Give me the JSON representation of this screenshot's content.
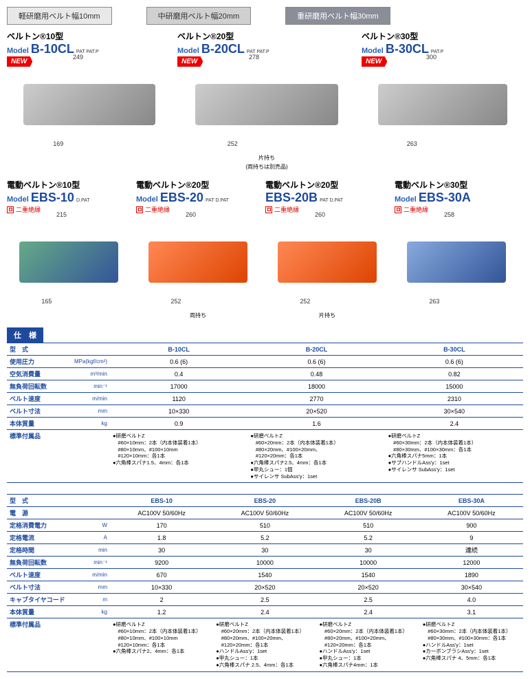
{
  "colors": {
    "blue": "#1e4a9e",
    "red": "#e00",
    "tab_heavy": "#8a8e99"
  },
  "tabs": {
    "light": "軽研磨用ベルト幅10mm",
    "mid": "中研磨用ベルト幅20mm",
    "heavy": "重研磨用ベルト幅30mm"
  },
  "new_label": "NEW",
  "row1": [
    {
      "jp": "ベルトン®10型",
      "model": "Model",
      "code": "B-10CL",
      "pat": "PAT\nPAT.P",
      "w": "249",
      "h": "169",
      "new": true
    },
    {
      "jp": "ベルトン®20型",
      "model": "Model",
      "code": "B-20CL",
      "pat": "PAT\nPAT.P",
      "w": "278",
      "h": "252",
      "new": true,
      "sub": "片持ち",
      "sub2": "(両持ちは別売品)"
    },
    {
      "jp": "ベルトン®30型",
      "model": "Model",
      "code": "B-30CL",
      "pat": "PAT.P",
      "w": "300",
      "h": "263",
      "new": true
    }
  ],
  "row2": [
    {
      "jp": "電動ベルトン®10型",
      "model": "Model",
      "code": "EBS-10",
      "pat": "D.PAT",
      "insul": "二重絶縁",
      "w": "215",
      "h": "165"
    },
    {
      "jp": "電動ベルトン®20型",
      "model": "Model",
      "code": "EBS-20",
      "pat": "PAT\nD.PAT",
      "insul": "二重絶縁",
      "w": "260",
      "h": "252",
      "sub": "両持ち"
    },
    {
      "jp": "電動ベルトン®20型",
      "model": "",
      "code": "EBS-20B",
      "pat": "PAT\nD.PAT",
      "insul": "二重絶縁",
      "w": "260",
      "h": "252",
      "sub": "片持ち"
    },
    {
      "jp": "電動ベルトン®30型",
      "model": "Model",
      "code": "EBS-30A",
      "pat": "",
      "insul": "二重絶縁",
      "w": "258",
      "h": "263"
    }
  ],
  "spec_title": "仕　様",
  "table1": {
    "headers": [
      "型　式",
      "B-10CL",
      "B-20CL",
      "B-30CL"
    ],
    "rows": [
      {
        "label": "使用圧力",
        "unit": "MPa(kgf/cm²)",
        "v": [
          "0.6 (6)",
          "0.6 (6)",
          "0.6 (6)"
        ]
      },
      {
        "label": "空気消費量",
        "unit": "m³/min",
        "v": [
          "0.4",
          "0.48",
          "0.82"
        ]
      },
      {
        "label": "無負荷回転数",
        "unit": "min⁻¹",
        "v": [
          "17000",
          "18000",
          "15000"
        ]
      },
      {
        "label": "ベルト速度",
        "unit": "m/min",
        "v": [
          "1120",
          "2770",
          "2310"
        ]
      },
      {
        "label": "ベルト寸法",
        "unit": "mm",
        "v": [
          "10×330",
          "20×520",
          "30×540"
        ]
      },
      {
        "label": "本体質量",
        "unit": "kg",
        "v": [
          "0.9",
          "1.6",
          "2.4"
        ]
      }
    ],
    "acc_label": "標準付属品",
    "acc": [
      "●研磨ベルトZ\n　#60×10mm：2本（内本体装着1本）\n　#80×10mm、#100×10mm\n　#120×10mm：各1本\n●六角棒スパナ1.5、4mm：各1本",
      "●研磨ベルトZ\n　#60×20mm：2本（内本体装着1本）\n　#80×20mm、#100×20mm、\n　#120×20mm：各1本\n●六角棒スパナ2.5、4mm：各1本\n●甲丸シュー：1個\n●サイレンサ SubAss'y：1set",
      "●研磨ベルトZ\n　#60×30mm：2本（内本体装着1本）\n　#80×30mm、#100×30mm：各1本\n●六角棒スパナ5mm：1本\n●サブハンドルAss'y：1set\n●サイレンサ SubAss'y：1set"
    ]
  },
  "table2": {
    "headers": [
      "型　式",
      "EBS-10",
      "EBS-20",
      "EBS-20B",
      "EBS-30A"
    ],
    "rows": [
      {
        "label": "電　源",
        "unit": "",
        "v": [
          "AC100V 50/60Hz",
          "AC100V 50/60Hz",
          "AC100V 50/60Hz",
          "AC100V 50/60Hz"
        ]
      },
      {
        "label": "定格消費電力",
        "unit": "W",
        "v": [
          "170",
          "510",
          "510",
          "900"
        ]
      },
      {
        "label": "定格電流",
        "unit": "A",
        "v": [
          "1.8",
          "5.2",
          "5.2",
          "9"
        ]
      },
      {
        "label": "定格時間",
        "unit": "min",
        "v": [
          "30",
          "30",
          "30",
          "連続"
        ]
      },
      {
        "label": "無負荷回転数",
        "unit": "min⁻¹",
        "v": [
          "9200",
          "10000",
          "10000",
          "12000"
        ]
      },
      {
        "label": "ベルト速度",
        "unit": "m/min",
        "v": [
          "670",
          "1540",
          "1540",
          "1890"
        ]
      },
      {
        "label": "ベルト寸法",
        "unit": "mm",
        "v": [
          "10×330",
          "20×520",
          "20×520",
          "30×540"
        ]
      },
      {
        "label": "キャブタイヤコード",
        "unit": "m",
        "v": [
          "2",
          "2.5",
          "2.5",
          "4.0"
        ]
      },
      {
        "label": "本体質量",
        "unit": "kg",
        "v": [
          "1.2",
          "2.4",
          "2.4",
          "3.1"
        ]
      }
    ],
    "acc_label": "標準付属品",
    "acc": [
      "●研磨ベルトZ\n　#60×10mm：2本（内本体装着1本）\n　#80×10mm、#100×10mm\n　#120×10mm：各1本\n●六角棒スパナ2、4mm：各1本",
      "●研磨ベルトZ\n　#60×20mm：2本（内本体装着1本）\n　#80×20mm、#100×20mm、\n　#120×20mm：各1本\n●ハンドルAss'y：1set\n●甲丸シュー：1本\n●六角棒スパナ 2.5、4mm：各1本",
      "●研磨ベルトZ\n　#60×20mm：2本（内本体装着1本）\n　#80×20mm、#100×20mm、\n　#120×20mm：各1本\n●ハンドルAss'y：1set\n●甲丸シュー：1本\n●六角棒スパナ4mm：1本",
      "●研磨ベルトZ\n　#60×30mm：2本（内本体装着1本）\n　#80×30mm、#100×30mm：各1本\n●ハンドルAss'y：1set\n●カーボンブラシAss'y：1set\n●六角棒スパナ 4、5mm：各1本"
    ]
  }
}
